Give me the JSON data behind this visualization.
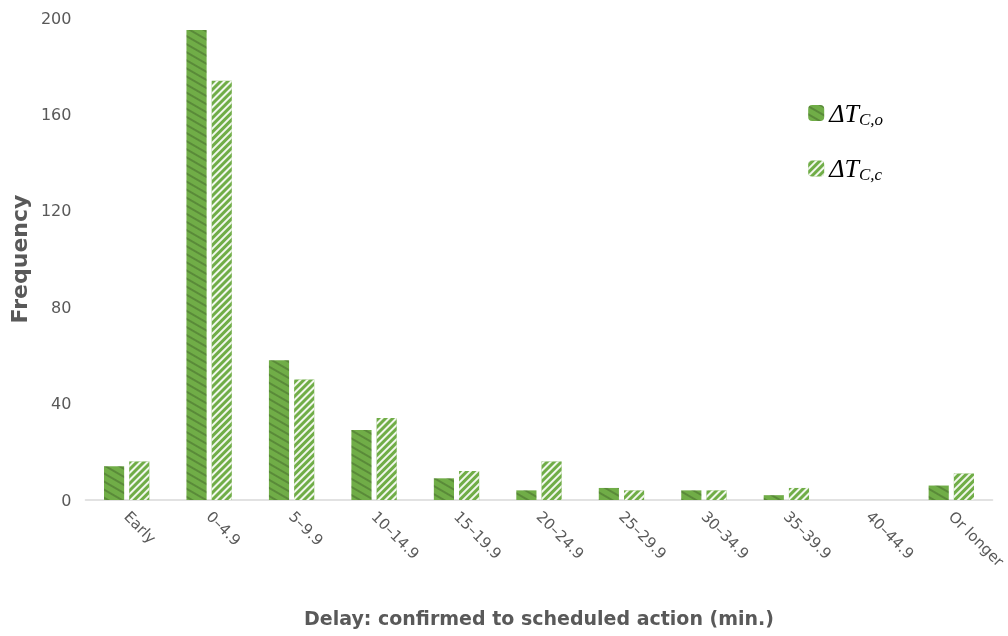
{
  "chart_data": {
    "type": "bar",
    "xlabel": "Delay: confirmed to scheduled action (min.)",
    "ylabel": "Frequency",
    "categories": [
      "Early",
      "0–4.9",
      "5–9.9",
      "10–14.9",
      "15–19.9",
      "20–24.9",
      "25–29.9",
      "30–34.9",
      "35–39.9",
      "40–44.9",
      "Or longer"
    ],
    "series": [
      {
        "name": "ΔT$_{C,o}$",
        "color": "#70ad47",
        "values": [
          14,
          195,
          58,
          29,
          9,
          4,
          5,
          4,
          2,
          0,
          6
        ]
      },
      {
        "name": "ΔT$_{C,c}$",
        "color": "#70ad47",
        "values": [
          16,
          174,
          50,
          34,
          12,
          16,
          4,
          4,
          5,
          0,
          11
        ]
      }
    ],
    "ylim": [
      0,
      200
    ],
    "yticks": [
      0,
      40,
      80,
      120,
      160,
      200
    ],
    "grid": false,
    "legend": "top right"
  }
}
